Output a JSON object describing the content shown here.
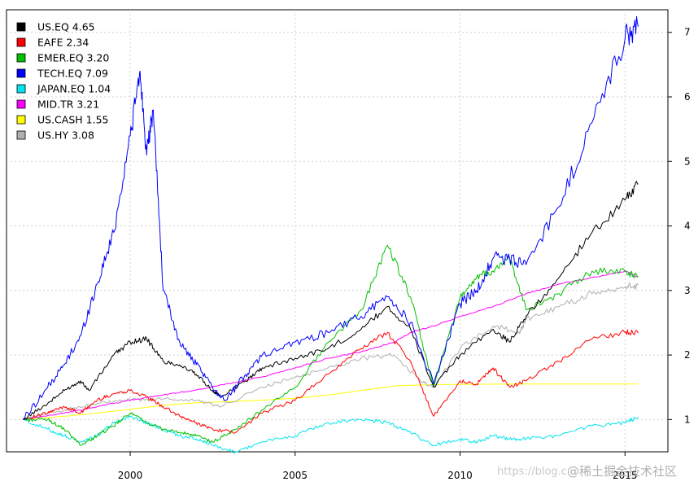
{
  "chart_data": {
    "type": "line",
    "title": "",
    "xlabel": "",
    "ylabel": "",
    "xlim": [
      1996.25,
      2016.3
    ],
    "ylim": [
      0.5,
      7.35
    ],
    "x_ticks": [
      2000,
      2005,
      2010,
      2015
    ],
    "x_tick_labels": [
      "2000",
      "2005",
      "2010",
      "2015"
    ],
    "y_ticks": [
      1,
      2,
      3,
      4,
      5,
      6,
      7
    ],
    "y_tick_labels": [
      "1",
      "2",
      "3",
      "4",
      "5",
      "6",
      "7"
    ],
    "y_axis_side": "right",
    "grid": true,
    "legend": {
      "position": "top-left",
      "entries": [
        {
          "label": "US.EQ 4.65",
          "color": "#000000"
        },
        {
          "label": "EAFE 2.34",
          "color": "#ff0000"
        },
        {
          "label": "EMER.EQ 3.20",
          "color": "#00c000"
        },
        {
          "label": "TECH.EQ 7.09",
          "color": "#0000ff"
        },
        {
          "label": "JAPAN.EQ 1.04",
          "color": "#00e5ee"
        },
        {
          "label": "MID.TR 3.21",
          "color": "#ff00ff"
        },
        {
          "label": "US.CASH 1.55",
          "color": "#ffff00"
        },
        {
          "label": "US.HY 3.08",
          "color": "#b0b0b0"
        }
      ]
    },
    "series": [
      {
        "name": "US.EQ",
        "color": "#000000",
        "final": 4.65,
        "x": [
          1996.75,
          1997.5,
          1998.0,
          1998.5,
          1998.75,
          1999.5,
          2000.0,
          2000.5,
          2001.0,
          2001.5,
          2002.0,
          2002.5,
          2002.75,
          2003.5,
          2004.0,
          2005.0,
          2006.0,
          2007.0,
          2007.8,
          2008.5,
          2009.2,
          2010.0,
          2011.0,
          2011.5,
          2012.0,
          2013.0,
          2014.0,
          2015.0,
          2015.4
        ],
        "y": [
          1.0,
          1.25,
          1.45,
          1.6,
          1.45,
          2.0,
          2.2,
          2.25,
          1.9,
          1.85,
          1.7,
          1.45,
          1.35,
          1.6,
          1.8,
          1.95,
          2.1,
          2.4,
          2.75,
          2.4,
          1.5,
          2.0,
          2.4,
          2.2,
          2.6,
          3.2,
          3.9,
          4.4,
          4.65
        ]
      },
      {
        "name": "EAFE",
        "color": "#ff0000",
        "final": 2.34,
        "x": [
          1996.75,
          1997.5,
          1998.0,
          1998.5,
          1999.0,
          1999.5,
          2000.0,
          2000.5,
          2001.0,
          2001.5,
          2002.0,
          2002.5,
          2003.2,
          2004.0,
          2005.0,
          2006.0,
          2007.0,
          2007.8,
          2008.5,
          2009.2,
          2010.0,
          2010.5,
          2011.0,
          2011.5,
          2012.0,
          2013.0,
          2014.0,
          2015.0,
          2015.4
        ],
        "y": [
          1.0,
          1.1,
          1.2,
          1.1,
          1.3,
          1.4,
          1.45,
          1.35,
          1.2,
          1.05,
          0.95,
          0.85,
          0.8,
          1.1,
          1.3,
          1.7,
          2.1,
          2.35,
          1.9,
          1.05,
          1.6,
          1.55,
          1.8,
          1.5,
          1.6,
          1.9,
          2.25,
          2.35,
          2.34
        ]
      },
      {
        "name": "EMER.EQ",
        "color": "#00c000",
        "final": 3.2,
        "x": [
          1996.75,
          1997.5,
          1998.0,
          1998.5,
          1999.0,
          1999.5,
          2000.0,
          2000.5,
          2001.0,
          2001.5,
          2002.0,
          2002.5,
          2003.2,
          2004.0,
          2005.0,
          2006.0,
          2007.0,
          2007.8,
          2008.5,
          2009.2,
          2010.0,
          2010.5,
          2011.0,
          2011.5,
          2012.0,
          2013.0,
          2014.0,
          2015.0,
          2015.4
        ],
        "y": [
          1.0,
          1.0,
          0.85,
          0.6,
          0.75,
          0.9,
          1.1,
          0.95,
          0.85,
          0.8,
          0.75,
          0.65,
          0.85,
          1.15,
          1.5,
          2.2,
          2.7,
          3.7,
          2.9,
          1.5,
          2.9,
          3.2,
          3.3,
          3.5,
          2.7,
          2.95,
          3.3,
          3.3,
          3.2
        ]
      },
      {
        "name": "TECH.EQ",
        "color": "#0000ff",
        "final": 7.09,
        "x": [
          1996.75,
          1997.5,
          1998.0,
          1998.5,
          1999.0,
          1999.5,
          2000.0,
          2000.3,
          2000.5,
          2000.7,
          2001.0,
          2001.5,
          2002.0,
          2002.5,
          2002.9,
          2003.5,
          2004.0,
          2005.0,
          2006.0,
          2007.0,
          2007.8,
          2008.5,
          2009.2,
          2010.0,
          2010.5,
          2011.0,
          2011.5,
          2012.0,
          2013.0,
          2014.0,
          2015.0,
          2015.4
        ],
        "y": [
          1.0,
          1.5,
          1.85,
          2.3,
          3.1,
          3.9,
          5.4,
          6.4,
          5.1,
          5.8,
          3.0,
          2.2,
          1.85,
          1.5,
          1.3,
          1.7,
          2.0,
          2.2,
          2.35,
          2.6,
          2.9,
          2.5,
          1.55,
          2.8,
          3.0,
          3.5,
          3.5,
          3.4,
          4.3,
          5.6,
          6.9,
          7.09
        ]
      },
      {
        "name": "JAPAN.EQ",
        "color": "#00e5ee",
        "final": 1.04,
        "x": [
          1996.75,
          1997.5,
          1998.0,
          1998.5,
          1999.0,
          1999.5,
          2000.0,
          2000.5,
          2001.0,
          2001.5,
          2002.0,
          2002.5,
          2003.2,
          2004.0,
          2005.0,
          2006.0,
          2007.0,
          2007.8,
          2008.5,
          2009.2,
          2010.0,
          2010.5,
          2011.0,
          2011.5,
          2012.0,
          2013.0,
          2014.0,
          2015.0,
          2015.4
        ],
        "y": [
          1.0,
          0.85,
          0.75,
          0.65,
          0.75,
          0.95,
          1.05,
          0.95,
          0.85,
          0.75,
          0.7,
          0.6,
          0.5,
          0.65,
          0.75,
          0.95,
          1.0,
          0.95,
          0.8,
          0.6,
          0.7,
          0.65,
          0.75,
          0.7,
          0.7,
          0.75,
          0.9,
          0.95,
          1.04
        ]
      },
      {
        "name": "MID.TR",
        "color": "#ff00ff",
        "final": 3.21,
        "x": [
          1996.75,
          1998.0,
          1999.0,
          2000.0,
          2001.0,
          2002.0,
          2003.0,
          2004.0,
          2005.0,
          2006.0,
          2007.0,
          2008.0,
          2008.5,
          2009.2,
          2010.0,
          2011.0,
          2012.0,
          2013.0,
          2014.0,
          2015.0,
          2015.4
        ],
        "y": [
          1.0,
          1.1,
          1.2,
          1.3,
          1.38,
          1.46,
          1.56,
          1.66,
          1.8,
          1.95,
          2.05,
          2.2,
          2.35,
          2.45,
          2.6,
          2.75,
          2.95,
          3.1,
          3.2,
          3.3,
          3.21
        ]
      },
      {
        "name": "US.CASH",
        "color": "#ffff00",
        "final": 1.55,
        "x": [
          1996.75,
          1998.0,
          1999.0,
          2000.0,
          2001.0,
          2002.0,
          2003.0,
          2004.0,
          2005.0,
          2006.0,
          2007.0,
          2008.0,
          2009.0,
          2010.0,
          2011.0,
          2012.0,
          2013.0,
          2014.0,
          2015.0,
          2015.4
        ],
        "y": [
          1.0,
          1.05,
          1.1,
          1.16,
          1.22,
          1.26,
          1.28,
          1.3,
          1.33,
          1.38,
          1.45,
          1.52,
          1.54,
          1.545,
          1.548,
          1.55,
          1.55,
          1.55,
          1.55,
          1.55
        ]
      },
      {
        "name": "US.HY",
        "color": "#b0b0b0",
        "final": 3.08,
        "x": [
          1996.75,
          1998.0,
          1999.0,
          2000.0,
          2001.0,
          2002.0,
          2002.75,
          2004.0,
          2005.0,
          2006.0,
          2007.0,
          2008.0,
          2008.8,
          2009.2,
          2010.0,
          2011.0,
          2011.8,
          2012.0,
          2013.0,
          2014.0,
          2015.0,
          2015.4
        ],
        "y": [
          1.0,
          1.15,
          1.25,
          1.3,
          1.32,
          1.3,
          1.2,
          1.5,
          1.65,
          1.8,
          1.95,
          2.0,
          1.6,
          1.5,
          2.1,
          2.45,
          2.35,
          2.55,
          2.75,
          2.95,
          3.05,
          3.08
        ]
      }
    ]
  },
  "watermark": {
    "left_text": "https://blog.c",
    "right_text": "@稀土掘金技术社区"
  }
}
